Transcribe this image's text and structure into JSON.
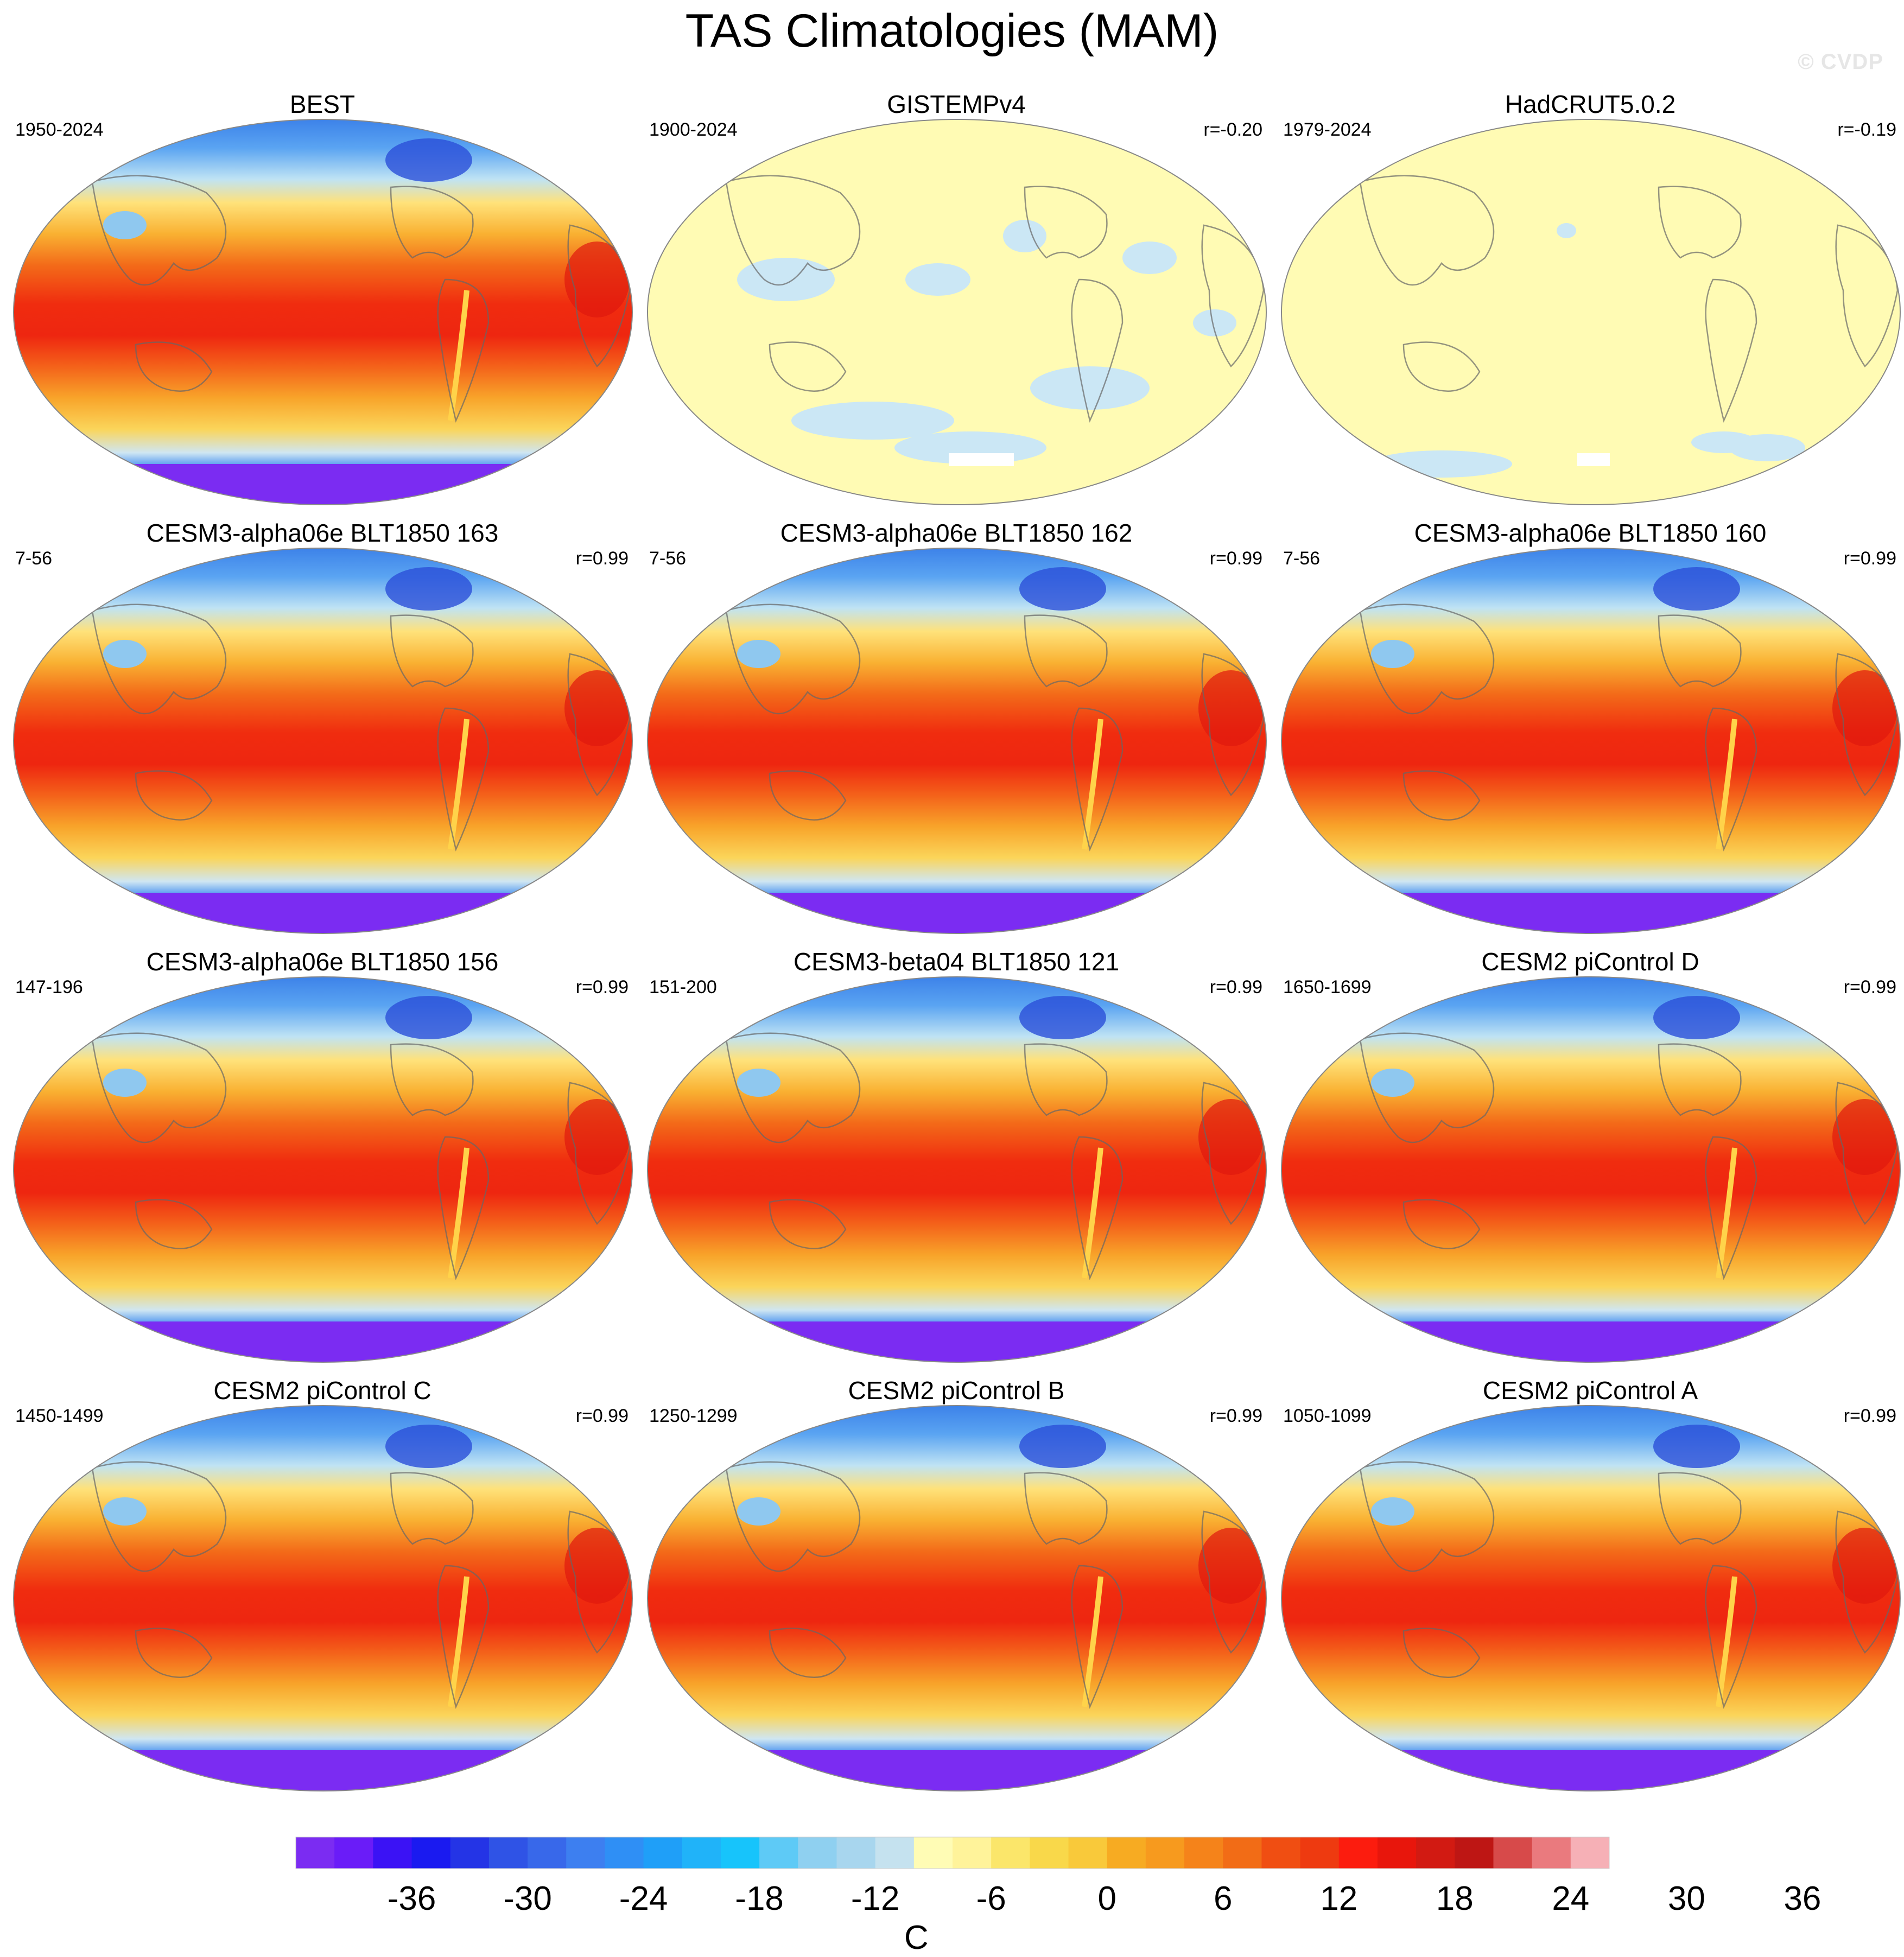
{
  "figure": {
    "title": "TAS Climatologies (MAM)",
    "watermark": "© CVDP"
  },
  "panels": [
    {
      "title": "BEST",
      "left": "1950-2024",
      "right": "",
      "style": "full"
    },
    {
      "title": "GISTEMPv4",
      "left": "1900-2024",
      "right": "r=-0.20",
      "style": "pale"
    },
    {
      "title": "HadCRUT5.0.2",
      "left": "1979-2024",
      "right": "r=-0.19",
      "style": "pale2"
    },
    {
      "title": "CESM3-alpha06e BLT1850 163",
      "left": "7-56",
      "right": "r=0.99",
      "style": "full"
    },
    {
      "title": "CESM3-alpha06e BLT1850 162",
      "left": "7-56",
      "right": "r=0.99",
      "style": "full"
    },
    {
      "title": "CESM3-alpha06e BLT1850 160",
      "left": "7-56",
      "right": "r=0.99",
      "style": "full"
    },
    {
      "title": "CESM3-alpha06e BLT1850 156",
      "left": "147-196",
      "right": "r=0.99",
      "style": "full"
    },
    {
      "title": "CESM3-beta04 BLT1850 121",
      "left": "151-200",
      "right": "r=0.99",
      "style": "full"
    },
    {
      "title": "CESM2 piControl D",
      "left": "1650-1699",
      "right": "r=0.99",
      "style": "full"
    },
    {
      "title": "CESM2 piControl C",
      "left": "1450-1499",
      "right": "r=0.99",
      "style": "full"
    },
    {
      "title": "CESM2 piControl B",
      "left": "1250-1299",
      "right": "r=0.99",
      "style": "full"
    },
    {
      "title": "CESM2 piControl A",
      "left": "1050-1099",
      "right": "r=0.99",
      "style": "full"
    }
  ],
  "colorbar": {
    "unit": "C",
    "tick_labels": [
      "-36",
      "-30",
      "-24",
      "-18",
      "-12",
      "-6",
      "0",
      "6",
      "12",
      "18",
      "24",
      "30",
      "36"
    ],
    "colors": [
      "#7b2cf2",
      "#6a1cf8",
      "#3b12f5",
      "#1a1af0",
      "#2434e6",
      "#2f53e6",
      "#3868ea",
      "#3d7ff0",
      "#2f8ff5",
      "#1f9ff8",
      "#20b3f9",
      "#17c4fb",
      "#5ecaf6",
      "#8fd0f0",
      "#a8d6ee",
      "#c5e2ef",
      "#fffcb5",
      "#fff39a",
      "#fbe66a",
      "#f9d84a",
      "#f9c93a",
      "#f7ab22",
      "#f79a1e",
      "#f5831a",
      "#f26c16",
      "#f04e12",
      "#ee3a10",
      "#fc1c0e",
      "#e8160c",
      "#d21a12",
      "#be1614",
      "#d74a4a",
      "#ea7a7e",
      "#f6b0b6"
    ]
  }
}
